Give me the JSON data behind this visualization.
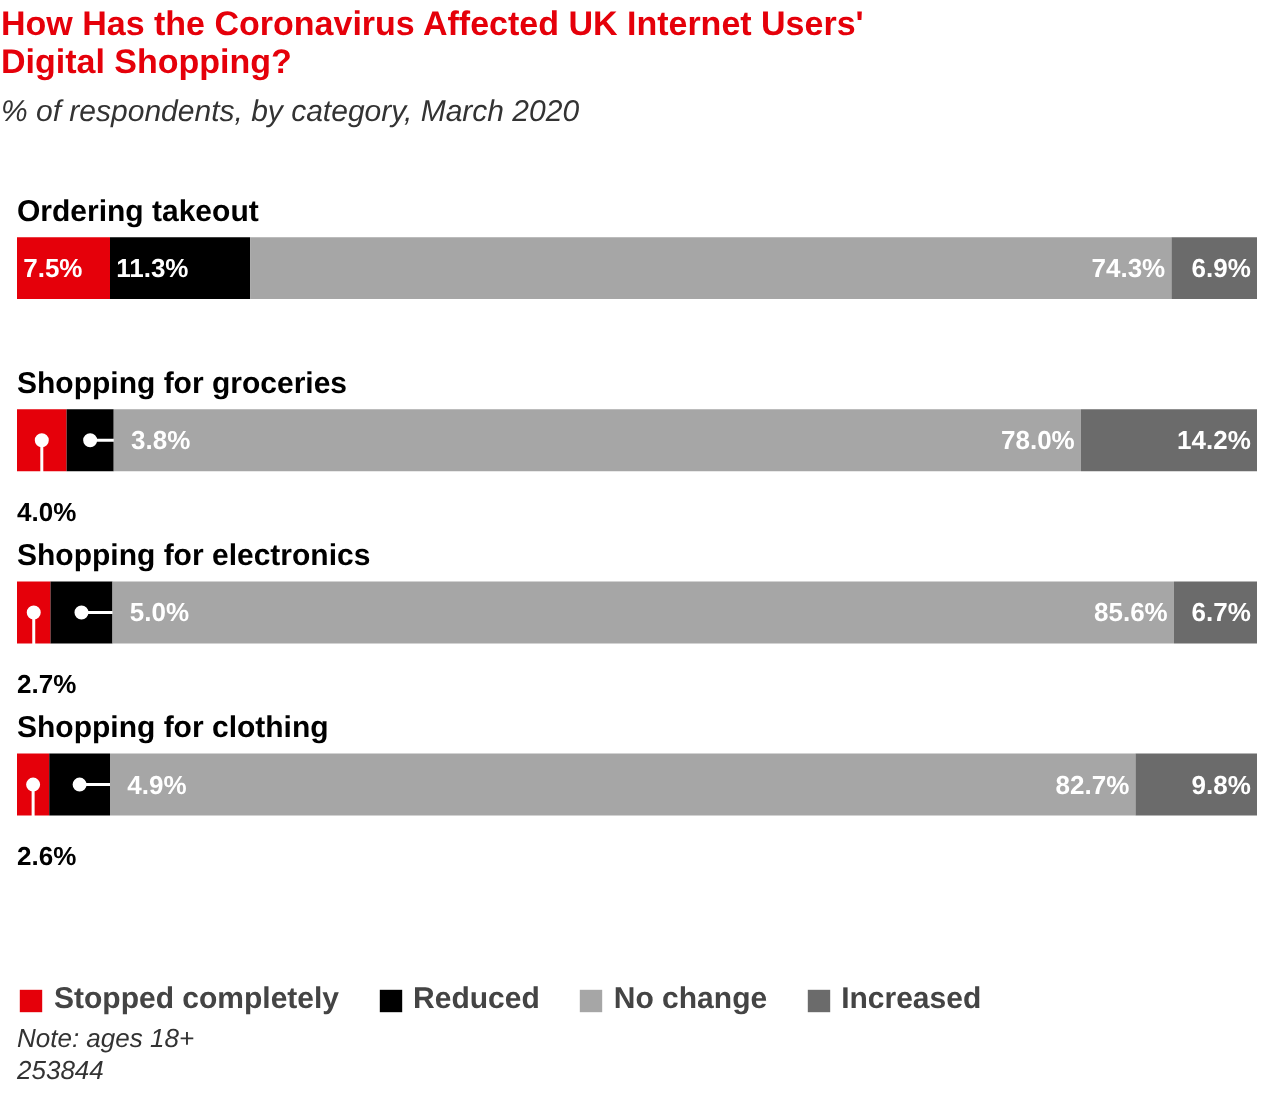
{
  "chart_data": {
    "type": "bar",
    "orientation": "horizontal",
    "stacked": true,
    "title": "How Has the Coronavirus Affected UK Internet Users' Digital Shopping?",
    "subtitle": "% of respondents, by category, March 2020",
    "categories": [
      "Ordering takeout",
      "Shopping for groceries",
      "Shopping for electronics",
      "Shopping for clothing"
    ],
    "series": [
      {
        "name": "Stopped completely",
        "color": "#e5000a",
        "values": [
          7.5,
          4.0,
          2.7,
          2.6
        ],
        "value_labels": [
          "7.5%",
          "4.0%",
          "2.7%",
          "2.6%"
        ]
      },
      {
        "name": "Reduced",
        "color": "#000000",
        "values": [
          11.3,
          3.8,
          5.0,
          4.9
        ],
        "value_labels": [
          "11.3%",
          "3.8%",
          "5.0%",
          "4.9%"
        ]
      },
      {
        "name": "No change",
        "color": "#a6a6a6",
        "values": [
          74.3,
          78.0,
          85.6,
          82.7
        ],
        "value_labels": [
          "74.3%",
          "78.0%",
          "85.6%",
          "82.7%"
        ]
      },
      {
        "name": "Increased",
        "color": "#6b6b6b",
        "values": [
          6.9,
          14.2,
          6.7,
          9.8
        ],
        "value_labels": [
          "6.9%",
          "14.2%",
          "6.7%",
          "9.8%"
        ]
      }
    ],
    "legend": "bottom",
    "grid": false,
    "annotations": [
      "Note: ages 18+",
      "253844"
    ]
  }
}
